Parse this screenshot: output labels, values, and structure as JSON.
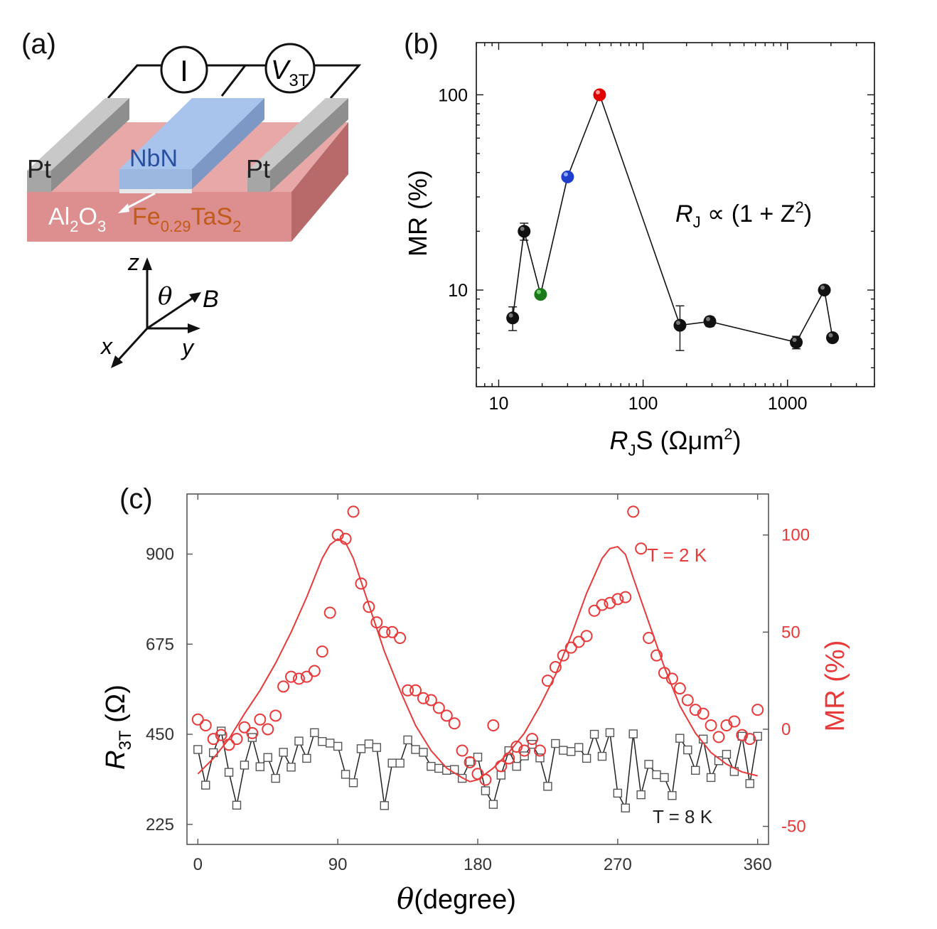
{
  "panel_a": {
    "label": "(a)",
    "current_symbol": "I",
    "voltage_symbol": "V",
    "voltage_sub": "3T",
    "electrode_left": "Pt",
    "electrode_right": "Pt",
    "superconductor": "NbN",
    "barrier_base1": "Al",
    "barrier_sub1": "2",
    "barrier_base2": "O",
    "barrier_sub2": "3",
    "substrate_base1": "Fe",
    "substrate_sub1": "0.29",
    "substrate_base2": "TaS",
    "substrate_sub2": "2",
    "axis_z": "z",
    "axis_x": "x",
    "axis_y": "y",
    "axis_b": "B",
    "angle_symbol": "θ",
    "colors": {
      "substrate": "#e39a9a",
      "substrate_side": "#b96767",
      "nbn": "#9fbde6",
      "pt": "#b0b0b0",
      "nbn_text": "#2850a0",
      "sub_text": "#c25a1a"
    }
  },
  "chart_data": [
    {
      "panel": "(b)",
      "type": "scatter",
      "xscale": "log",
      "yscale": "log",
      "xlim": [
        7,
        4000
      ],
      "ylim": [
        3.2,
        185
      ],
      "xticks": [
        10,
        100,
        1000
      ],
      "xtick_labels": [
        "10",
        "100",
        "1000"
      ],
      "yticks": [
        10,
        100
      ],
      "ytick_labels": [
        "10",
        "100"
      ],
      "xlabel_main": "R",
      "xlabel_sub": "J",
      "xlabel_rest": "S (Ωμm",
      "xlabel_sup": "2",
      "xlabel_end": ")",
      "ylabel": "MR (%)",
      "annotation_main": "R",
      "annotation_sub": "J",
      "annotation_rest": " ∝ (1 + Z",
      "annotation_sup": "2",
      "annotation_end": ")",
      "points": [
        {
          "x": 12.5,
          "y": 7.2,
          "err": 1.0,
          "color": "black"
        },
        {
          "x": 15,
          "y": 20,
          "err": 2.0,
          "color": "black"
        },
        {
          "x": 19.5,
          "y": 9.5,
          "err": 0,
          "color": "green"
        },
        {
          "x": 30,
          "y": 38,
          "err": 0,
          "color": "blue"
        },
        {
          "x": 50,
          "y": 100,
          "err": 0,
          "color": "red"
        },
        {
          "x": 180,
          "y": 6.6,
          "err": 1.7,
          "color": "black"
        },
        {
          "x": 290,
          "y": 6.9,
          "err": 0.4,
          "color": "black"
        },
        {
          "x": 1150,
          "y": 5.4,
          "err": 0.4,
          "color": "black"
        },
        {
          "x": 1800,
          "y": 10,
          "err": 0.3,
          "color": "black"
        },
        {
          "x": 2050,
          "y": 5.7,
          "err": 0.3,
          "color": "black"
        }
      ]
    },
    {
      "panel": "(c)",
      "type": "scatter",
      "xlim": [
        -7,
        367
      ],
      "ylim_left": [
        175,
        1050
      ],
      "ylim_right": [
        -59.3,
        121.1
      ],
      "xticks": [
        0,
        90,
        180,
        270,
        360
      ],
      "xtick_labels": [
        "0",
        "90",
        "180",
        "270",
        "360"
      ],
      "yticks_left": [
        225,
        450,
        675,
        900
      ],
      "ytick_labels_left": [
        "225",
        "450",
        "675",
        "900"
      ],
      "yticks_right": [
        -50,
        0,
        50,
        100
      ],
      "ytick_labels_right": [
        "-50",
        "0",
        "50",
        "100"
      ],
      "xlabel_symbol": "θ",
      "xlabel_text": "(degree)",
      "ylabel_left_main": "R",
      "ylabel_left_sub": "3T",
      "ylabel_left_rest": " (Ω)",
      "ylabel_right": "MR (%)",
      "legend_red": "T = 2 K",
      "legend_black": "T = 8 K",
      "series": [
        {
          "name": "T = 2 K",
          "marker": "circle",
          "color": "#e83a3a",
          "axis": "right",
          "x": [
            0,
            5,
            10,
            15,
            20,
            25,
            30,
            35,
            40,
            45,
            50,
            55,
            60,
            65,
            70,
            75,
            80,
            85,
            90,
            95,
            100,
            105,
            110,
            115,
            120,
            125,
            130,
            135,
            140,
            145,
            150,
            155,
            160,
            165,
            170,
            175,
            180,
            185,
            190,
            195,
            200,
            205,
            210,
            215,
            220,
            225,
            230,
            235,
            240,
            245,
            250,
            255,
            260,
            265,
            270,
            275,
            280,
            285,
            290,
            295,
            300,
            305,
            310,
            315,
            320,
            325,
            330,
            335,
            340,
            345,
            350,
            355,
            360
          ],
          "y": [
            5,
            2,
            -5,
            -3,
            -8,
            -5,
            1,
            -2,
            5,
            0,
            7,
            22,
            27,
            26,
            27,
            30,
            40,
            60,
            100,
            98,
            112,
            75,
            63,
            55,
            50,
            50,
            47,
            20,
            20,
            16,
            15,
            11,
            7,
            3,
            -11,
            -17,
            -23,
            -26,
            2,
            -19,
            -15,
            -9,
            -11,
            -5,
            -11,
            25,
            32,
            38,
            42,
            45,
            48,
            61,
            64,
            65,
            67,
            68,
            112,
            93,
            47,
            38,
            29,
            26,
            21,
            15,
            10,
            8,
            2,
            -4,
            2,
            4,
            -3,
            -5,
            10
          ],
          "fit_x": [
            0,
            10,
            20,
            30,
            40,
            50,
            60,
            70,
            75,
            80,
            85,
            90,
            95,
            100,
            110,
            120,
            130,
            140,
            150,
            160,
            170,
            175,
            180,
            190,
            200,
            210,
            220,
            230,
            240,
            250,
            260,
            265,
            270,
            275,
            280,
            290,
            300,
            310,
            320,
            330,
            340,
            350,
            360
          ],
          "fit_y": [
            -23,
            -15,
            -5,
            8,
            20,
            34,
            50,
            68,
            78,
            88,
            95,
            98,
            96,
            88,
            64,
            40,
            20,
            2,
            -11,
            -20,
            -25,
            -27,
            -26,
            -20,
            -12,
            -2,
            12,
            28,
            48,
            70,
            88,
            93,
            94,
            90,
            78,
            55,
            32,
            12,
            -2,
            -12,
            -18,
            -22,
            -24
          ]
        },
        {
          "name": "T = 8 K",
          "marker": "square",
          "color": "#222222",
          "axis": "left",
          "x": [
            0,
            5,
            10,
            15,
            20,
            25,
            30,
            35,
            40,
            45,
            50,
            55,
            60,
            65,
            70,
            75,
            80,
            85,
            90,
            95,
            100,
            105,
            110,
            115,
            120,
            125,
            130,
            135,
            140,
            145,
            150,
            155,
            160,
            165,
            170,
            175,
            180,
            185,
            190,
            195,
            200,
            205,
            210,
            215,
            220,
            225,
            230,
            235,
            240,
            245,
            250,
            255,
            260,
            265,
            270,
            275,
            280,
            285,
            290,
            295,
            300,
            305,
            310,
            315,
            320,
            325,
            330,
            335,
            340,
            345,
            350,
            355,
            360
          ],
          "y": [
            412,
            323,
            404,
            458,
            355,
            273,
            373,
            442,
            369,
            392,
            340,
            405,
            368,
            433,
            390,
            454,
            432,
            428,
            420,
            350,
            329,
            414,
            426,
            417,
            272,
            378,
            378,
            436,
            412,
            405,
            370,
            365,
            360,
            362,
            340,
            382,
            393,
            309,
            275,
            348,
            409,
            370,
            396,
            425,
            391,
            320,
            427,
            410,
            407,
            417,
            390,
            450,
            395,
            454,
            303,
            266,
            451,
            299,
            375,
            349,
            342,
            297,
            440,
            411,
            360,
            438,
            342,
            384,
            400,
            357,
            445,
            327,
            445
          ]
        }
      ]
    }
  ]
}
